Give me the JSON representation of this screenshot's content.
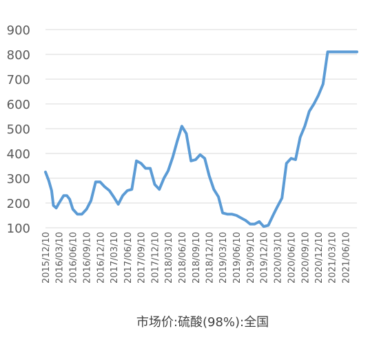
{
  "chart_data": {
    "type": "line",
    "title": "",
    "xlabel": "",
    "ylabel": "",
    "ylim": [
      100,
      900
    ],
    "yticks": [
      100,
      200,
      300,
      400,
      500,
      600,
      700,
      800,
      900
    ],
    "grid": true,
    "legend_position": "bottom",
    "x_tick_labels": [
      "2015/12/10",
      "2016/03/10",
      "2016/06/10",
      "2016/09/10",
      "2016/12/10",
      "2017/03/10",
      "2017/06/10",
      "2017/09/10",
      "2017/12/10",
      "2018/03/10",
      "2018/06/10",
      "2018/09/10",
      "2018/12/10",
      "2019/03/10",
      "2019/06/10",
      "2019/09/10",
      "2019/12/10",
      "2020/03/10",
      "2020/06/10",
      "2020/09/10",
      "2020/12/10",
      "2021/03/10",
      "2021/06/10"
    ],
    "series": [
      {
        "name": "市场价:硫酸(98%):全国",
        "color": "#5B9BD5",
        "x": [
          "2015/12/10",
          "2016/01/01",
          "2016/01/20",
          "2016/02/01",
          "2016/02/20",
          "2016/03/10",
          "2016/04/10",
          "2016/05/01",
          "2016/05/20",
          "2016/06/10",
          "2016/07/10",
          "2016/08/10",
          "2016/09/10",
          "2016/10/10",
          "2016/11/10",
          "2016/12/10",
          "2017/01/10",
          "2017/02/10",
          "2017/03/10",
          "2017/04/10",
          "2017/05/10",
          "2017/06/10",
          "2017/07/10",
          "2017/08/10",
          "2017/09/10",
          "2017/10/10",
          "2017/11/10",
          "2017/12/10",
          "2018/01/10",
          "2018/02/10",
          "2018/03/10",
          "2018/04/10",
          "2018/05/10",
          "2018/06/10",
          "2018/07/10",
          "2018/08/10",
          "2018/09/10",
          "2018/10/10",
          "2018/11/10",
          "2018/12/10",
          "2019/01/10",
          "2019/02/10",
          "2019/03/10",
          "2019/04/10",
          "2019/05/10",
          "2019/06/10",
          "2019/07/10",
          "2019/08/10",
          "2019/09/10",
          "2019/10/10",
          "2019/11/10",
          "2019/12/10",
          "2020/01/10",
          "2020/02/10",
          "2020/03/10",
          "2020/04/10",
          "2020/05/10",
          "2020/06/10",
          "2020/07/10",
          "2020/08/10",
          "2020/09/10",
          "2020/10/10",
          "2020/11/10",
          "2020/12/10",
          "2021/01/10",
          "2021/02/10",
          "2021/03/10",
          "2021/04/10",
          "2021/05/10",
          "2021/06/10",
          "2021/07/10",
          "2021/08/10",
          "2021/08/25"
        ],
        "values": [
          325,
          290,
          250,
          190,
          180,
          200,
          230,
          230,
          215,
          175,
          155,
          155,
          175,
          210,
          285,
          285,
          265,
          250,
          225,
          195,
          230,
          250,
          255,
          370,
          360,
          340,
          340,
          275,
          255,
          300,
          330,
          385,
          450,
          510,
          480,
          370,
          375,
          395,
          380,
          310,
          255,
          225,
          160,
          155,
          155,
          150,
          140,
          130,
          115,
          115,
          125,
          105,
          110,
          150,
          185,
          220,
          360,
          380,
          375,
          465,
          510,
          570,
          600,
          635,
          680,
          810,
          810,
          810,
          810,
          810,
          810,
          810,
          810
        ]
      }
    ]
  }
}
